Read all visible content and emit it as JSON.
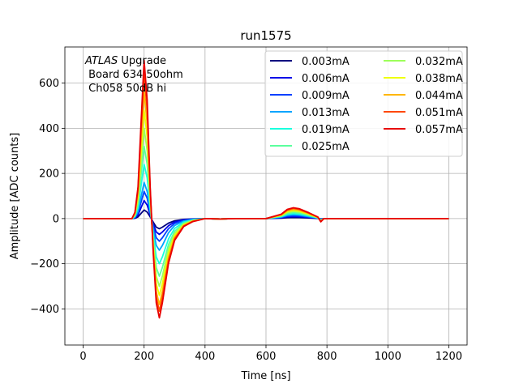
{
  "chart_data": {
    "type": "line",
    "title": "run1575",
    "xlabel": "Time [ns]",
    "ylabel": "Amplitude [ADC counts]",
    "xlim": [
      -60,
      1260
    ],
    "ylim": [
      -560,
      760
    ],
    "xticks": [
      0,
      200,
      400,
      600,
      800,
      1000,
      1200
    ],
    "yticks": [
      -400,
      -200,
      0,
      200,
      400,
      600
    ],
    "xtick_labels": [
      "0",
      "200",
      "400",
      "600",
      "800",
      "1000",
      "1200"
    ],
    "ytick_labels": [
      "−400",
      "−200",
      "0",
      "200",
      "400",
      "600"
    ],
    "grid": true,
    "legend": {
      "placement": "top-right",
      "columns": 2
    },
    "annotation": {
      "italic": "ATLAS",
      "line1": " Upgrade",
      "line2": " Board 634 50ohm",
      "line3": " Ch058 50dB hi"
    },
    "x": [
      0,
      160,
      170,
      180,
      190,
      200,
      210,
      220,
      230,
      240,
      250,
      260,
      280,
      300,
      330,
      360,
      400,
      450,
      500,
      600,
      650,
      670,
      690,
      710,
      740,
      770,
      780,
      790,
      1200
    ],
    "series": [
      {
        "name": "0.003mA",
        "color": "#00007f",
        "peak": 38,
        "trough": -45,
        "bump": 5
      },
      {
        "name": "0.006mA",
        "color": "#0000e8",
        "peak": 80,
        "trough": -70,
        "bump": 9
      },
      {
        "name": "0.009mA",
        "color": "#0040ff",
        "peak": 120,
        "trough": -100,
        "bump": 13
      },
      {
        "name": "0.013mA",
        "color": "#00a4ff",
        "peak": 160,
        "trough": -140,
        "bump": 17
      },
      {
        "name": "0.019mA",
        "color": "#19ffde",
        "peak": 240,
        "trough": -200,
        "bump": 22
      },
      {
        "name": "0.025mA",
        "color": "#5aff9d",
        "peak": 320,
        "trough": -255,
        "bump": 27
      },
      {
        "name": "0.032mA",
        "color": "#9dff5a",
        "peak": 400,
        "trough": -300,
        "bump": 32
      },
      {
        "name": "0.038mA",
        "color": "#eeff00",
        "peak": 480,
        "trough": -340,
        "bump": 36
      },
      {
        "name": "0.044mA",
        "color": "#ffb600",
        "peak": 560,
        "trough": -380,
        "bump": 40
      },
      {
        "name": "0.051mA",
        "color": "#ff4800",
        "peak": 640,
        "trough": -410,
        "bump": 45
      },
      {
        "name": "0.057mA",
        "color": "#e80000",
        "peak": 700,
        "trough": -440,
        "bump": 48
      }
    ]
  }
}
